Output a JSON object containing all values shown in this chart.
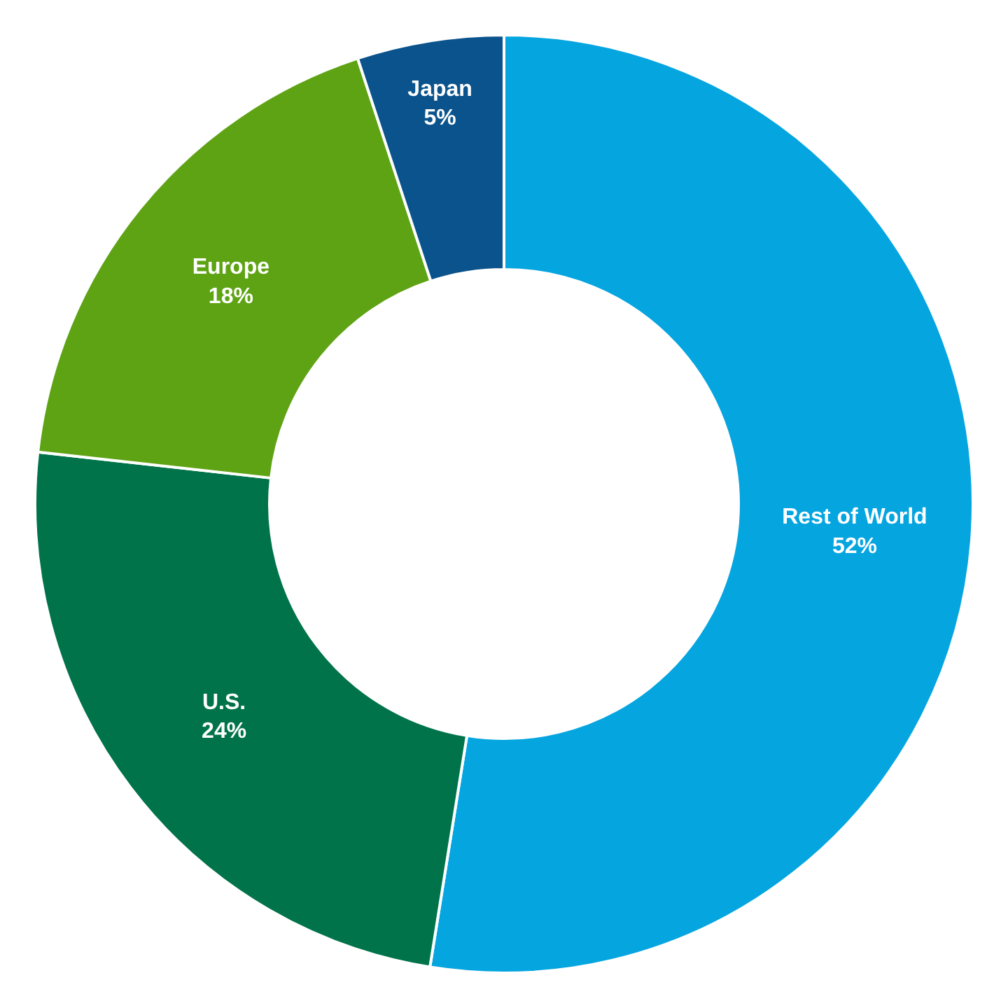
{
  "chart_data": {
    "type": "donut",
    "categories": [
      "Rest of World",
      "U.S.",
      "Europe",
      "Japan"
    ],
    "values": [
      52,
      24,
      18,
      5
    ],
    "value_labels": [
      "52%",
      "24%",
      "18%",
      "5%"
    ],
    "colors": [
      "#05a5e0",
      "#00734a",
      "#5ea314",
      "#0b538c"
    ],
    "legend": false
  }
}
